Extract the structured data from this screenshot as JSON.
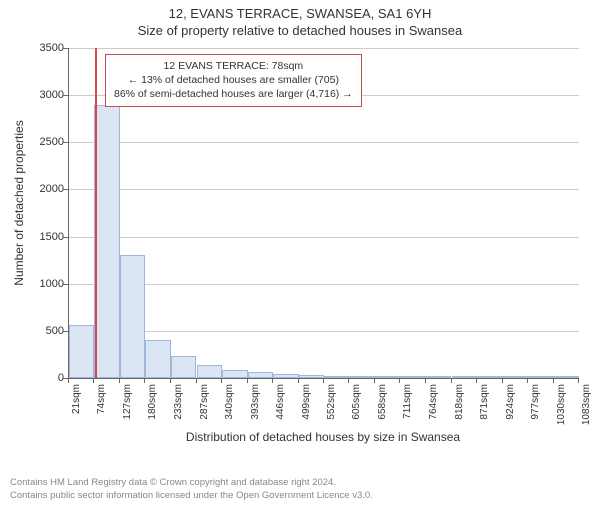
{
  "header": {
    "title_line1": "12, EVANS TERRACE, SWANSEA, SA1 6YH",
    "title_line2": "Size of property relative to detached houses in Swansea"
  },
  "chart": {
    "type": "histogram",
    "ylabel": "Number of detached properties",
    "xlabel": "Distribution of detached houses by size in Swansea",
    "background_color": "#ffffff",
    "grid_color": "#cccccc",
    "axis_color": "#666666",
    "bar_fill": "#dbe5f4",
    "bar_border": "#9fb8da",
    "marker_color": "#d94848",
    "ylim": [
      0,
      3500
    ],
    "ytick_step": 500,
    "yticks": [
      0,
      500,
      1000,
      1500,
      2000,
      2500,
      3000,
      3500
    ],
    "x_tick_start": 21,
    "x_tick_step": 53,
    "x_tick_count": 21,
    "x_unit": "sqm",
    "bin_width_sqm": 53,
    "bin_starts": [
      21,
      74,
      127,
      180,
      233,
      287,
      340,
      393,
      446,
      499,
      552,
      605,
      658,
      711,
      764,
      818,
      871,
      924,
      977,
      1030,
      1083
    ],
    "values": [
      560,
      2900,
      1300,
      400,
      230,
      140,
      90,
      60,
      40,
      30,
      20,
      15,
      10,
      8,
      6,
      4,
      3,
      2,
      1,
      1
    ],
    "marker_value_sqm": 78,
    "label_fontsize": 12,
    "tick_fontsize": 11,
    "title_fontsize": 13
  },
  "annotation": {
    "line1": "12 EVANS TERRACE: 78sqm",
    "line2": "← 13% of detached houses are smaller (705)",
    "line3": "86% of semi-detached houses are larger (4,716) →",
    "border_color": "#c05050",
    "bg_color": "#ffffff",
    "fontsize": 10.5
  },
  "footer": {
    "line1": "Contains HM Land Registry data © Crown copyright and database right 2024.",
    "line2": "Contains public sector information licensed under the Open Government Licence v3.0.",
    "color": "#888888",
    "fontsize": 9.5
  }
}
